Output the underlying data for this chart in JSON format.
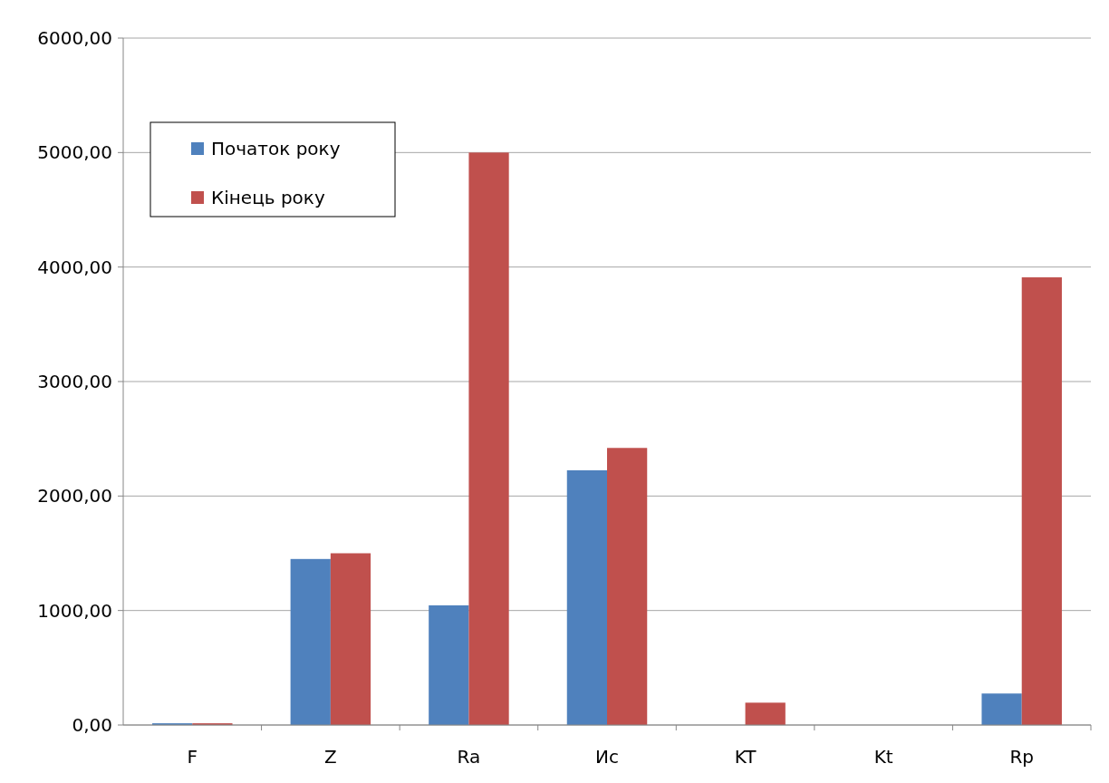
{
  "chart_data": {
    "type": "bar",
    "categories": [
      "F",
      "Z",
      "Ra",
      "Ис",
      "KT",
      "Kt",
      "Rp"
    ],
    "series": [
      {
        "name": "Початок року",
        "color": "#4f81bd",
        "values": [
          15,
          1450,
          1045,
          2225,
          0,
          0,
          275
        ]
      },
      {
        "name": "Кінець року",
        "color": "#c0504d",
        "values": [
          15,
          1500,
          5000,
          2420,
          195,
          0,
          3910
        ]
      }
    ],
    "ylim": [
      0,
      6000
    ],
    "yticks": [
      {
        "value": 0,
        "label": "0,00"
      },
      {
        "value": 1000,
        "label": "1000,00"
      },
      {
        "value": 2000,
        "label": "2000,00"
      },
      {
        "value": 3000,
        "label": "3000,00"
      },
      {
        "value": 4000,
        "label": "4000,00"
      },
      {
        "value": 5000,
        "label": "5000,00"
      },
      {
        "value": 6000,
        "label": "6000,00"
      }
    ],
    "grid": "y",
    "legend": "top left"
  }
}
